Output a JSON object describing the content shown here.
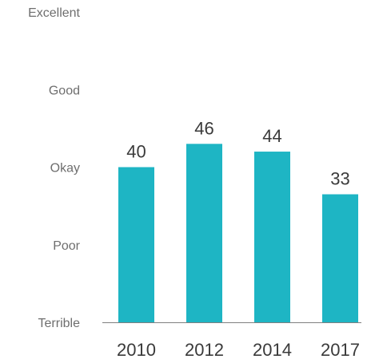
{
  "chart_data": {
    "type": "bar",
    "categories": [
      "2010",
      "2012",
      "2014",
      "2017"
    ],
    "values": [
      40,
      46,
      44,
      33
    ],
    "y_tick_labels": [
      "Terrible",
      "Poor",
      "Okay",
      "Good",
      "Excellent"
    ],
    "y_tick_values": [
      0,
      20,
      40,
      60,
      80
    ],
    "ylim": [
      0,
      80
    ],
    "grid": false,
    "legend": "none",
    "bar_color": "#1eb5c4",
    "axis_color": "#7f7f7f"
  }
}
